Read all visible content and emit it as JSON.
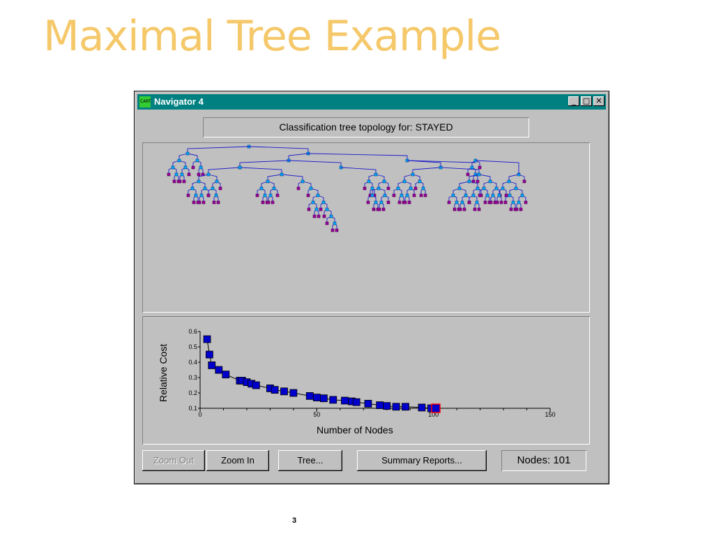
{
  "slide": {
    "title": "Maximal Tree Example",
    "page_number": "3"
  },
  "window": {
    "title": "Navigator 4",
    "icon_text": "CART",
    "controls": {
      "minimize": "_",
      "maximize": "□",
      "close": "✕"
    }
  },
  "tree_caption": "Classification tree topology for: STAYED",
  "colors": {
    "title": "#f5c86a",
    "titlebar": "#008080",
    "tree_edges": "#1a1acc",
    "tree_node_split": "#00aaff",
    "tree_node_terminal": "#990099",
    "curve_points": "#0000cc",
    "selected_point": "#ff0000"
  },
  "chart_data": {
    "type": "line",
    "xlabel": "Number of Nodes",
    "ylabel": "Relative Cost",
    "xlim": [
      0,
      150
    ],
    "ylim": [
      0.1,
      0.6
    ],
    "xticks": [
      0,
      50,
      100,
      150
    ],
    "yticks": [
      0.1,
      0.2,
      0.3,
      0.4,
      0.5,
      0.6
    ],
    "ytick_labels": [
      "0.1",
      "0.2",
      "0.3",
      "0.4",
      "0.5",
      "0.6"
    ],
    "grid": false,
    "points": [
      [
        3,
        0.55
      ],
      [
        4,
        0.45
      ],
      [
        5,
        0.38
      ],
      [
        8,
        0.35
      ],
      [
        11,
        0.32
      ],
      [
        17,
        0.28
      ],
      [
        18,
        0.28
      ],
      [
        20,
        0.27
      ],
      [
        22,
        0.26
      ],
      [
        24,
        0.25
      ],
      [
        30,
        0.23
      ],
      [
        32,
        0.22
      ],
      [
        36,
        0.21
      ],
      [
        40,
        0.2
      ],
      [
        47,
        0.18
      ],
      [
        50,
        0.17
      ],
      [
        53,
        0.165
      ],
      [
        57,
        0.155
      ],
      [
        62,
        0.15
      ],
      [
        65,
        0.145
      ],
      [
        67,
        0.14
      ],
      [
        72,
        0.13
      ],
      [
        77,
        0.12
      ],
      [
        80,
        0.115
      ],
      [
        84,
        0.11
      ],
      [
        88,
        0.11
      ],
      [
        95,
        0.105
      ],
      [
        99,
        0.1
      ]
    ],
    "selected_point": [
      101,
      0.1
    ]
  },
  "buttons": {
    "zoom_out": "Zoom Out",
    "zoom_in": "Zoom In",
    "tree": "Tree...",
    "summary_reports": "Summary Reports..."
  },
  "nodes_readout": "Nodes: 101"
}
